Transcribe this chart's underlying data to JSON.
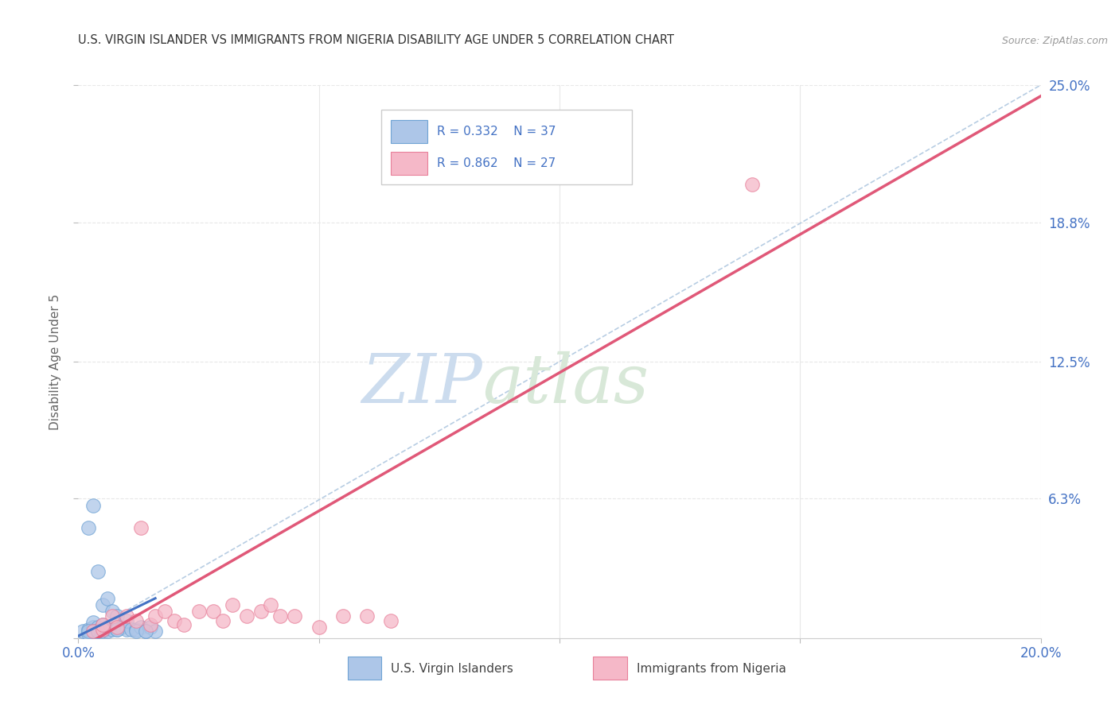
{
  "title": "U.S. VIRGIN ISLANDER VS IMMIGRANTS FROM NIGERIA DISABILITY AGE UNDER 5 CORRELATION CHART",
  "source": "Source: ZipAtlas.com",
  "ylabel": "Disability Age Under 5",
  "xlim": [
    0.0,
    0.2
  ],
  "ylim": [
    0.0,
    0.25
  ],
  "xticks": [
    0.0,
    0.05,
    0.1,
    0.15,
    0.2
  ],
  "xtick_labels": [
    "0.0%",
    "",
    "",
    "",
    "20.0%"
  ],
  "ytick_labels_right": [
    "6.3%",
    "12.5%",
    "18.8%",
    "25.0%"
  ],
  "yticks_right": [
    0.063,
    0.125,
    0.188,
    0.25
  ],
  "watermark_zip": "ZIP",
  "watermark_atlas": "atlas",
  "legend_r1": "R = 0.332",
  "legend_n1": "N = 37",
  "legend_r2": "R = 0.862",
  "legend_n2": "N = 27",
  "blue_color": "#adc6e8",
  "blue_edge_color": "#6fa3d4",
  "blue_line_color": "#4472c4",
  "pink_color": "#f5b8c8",
  "pink_edge_color": "#e8809a",
  "pink_line_color": "#e05878",
  "blue_scatter_x": [
    0.001,
    0.002,
    0.002,
    0.002,
    0.003,
    0.003,
    0.003,
    0.003,
    0.004,
    0.004,
    0.004,
    0.005,
    0.005,
    0.005,
    0.006,
    0.006,
    0.006,
    0.007,
    0.007,
    0.008,
    0.008,
    0.009,
    0.01,
    0.01,
    0.011,
    0.012,
    0.013,
    0.014,
    0.015,
    0.016,
    0.003,
    0.005,
    0.008,
    0.012,
    0.014,
    0.002,
    0.004
  ],
  "blue_scatter_y": [
    0.003,
    0.002,
    0.004,
    0.05,
    0.003,
    0.005,
    0.007,
    0.06,
    0.003,
    0.005,
    0.03,
    0.003,
    0.006,
    0.015,
    0.003,
    0.005,
    0.018,
    0.004,
    0.012,
    0.004,
    0.01,
    0.005,
    0.004,
    0.008,
    0.004,
    0.004,
    0.005,
    0.003,
    0.005,
    0.003,
    0.003,
    0.004,
    0.004,
    0.003,
    0.003,
    0.003,
    0.003
  ],
  "pink_scatter_x": [
    0.003,
    0.005,
    0.007,
    0.008,
    0.01,
    0.012,
    0.013,
    0.015,
    0.016,
    0.018,
    0.02,
    0.022,
    0.025,
    0.028,
    0.03,
    0.032,
    0.035,
    0.038,
    0.04,
    0.042,
    0.045,
    0.05,
    0.055,
    0.06,
    0.065,
    0.14,
    0.005
  ],
  "pink_scatter_y": [
    0.003,
    0.004,
    0.01,
    0.005,
    0.01,
    0.008,
    0.05,
    0.006,
    0.01,
    0.012,
    0.008,
    0.006,
    0.012,
    0.012,
    0.008,
    0.015,
    0.01,
    0.012,
    0.015,
    0.01,
    0.01,
    0.005,
    0.01,
    0.01,
    0.008,
    0.205,
    0.006
  ],
  "blue_trend_x": [
    0.0,
    0.016
  ],
  "blue_trend_y": [
    0.001,
    0.018
  ],
  "pink_trend_x": [
    0.0,
    0.2
  ],
  "pink_trend_y": [
    -0.005,
    0.245
  ],
  "ref_line_x": [
    0.0,
    0.2
  ],
  "ref_line_y": [
    0.0,
    0.25
  ],
  "ref_line_color": "#b0c8e0",
  "grid_color": "#e8e8e8",
  "bg_color": "#ffffff"
}
